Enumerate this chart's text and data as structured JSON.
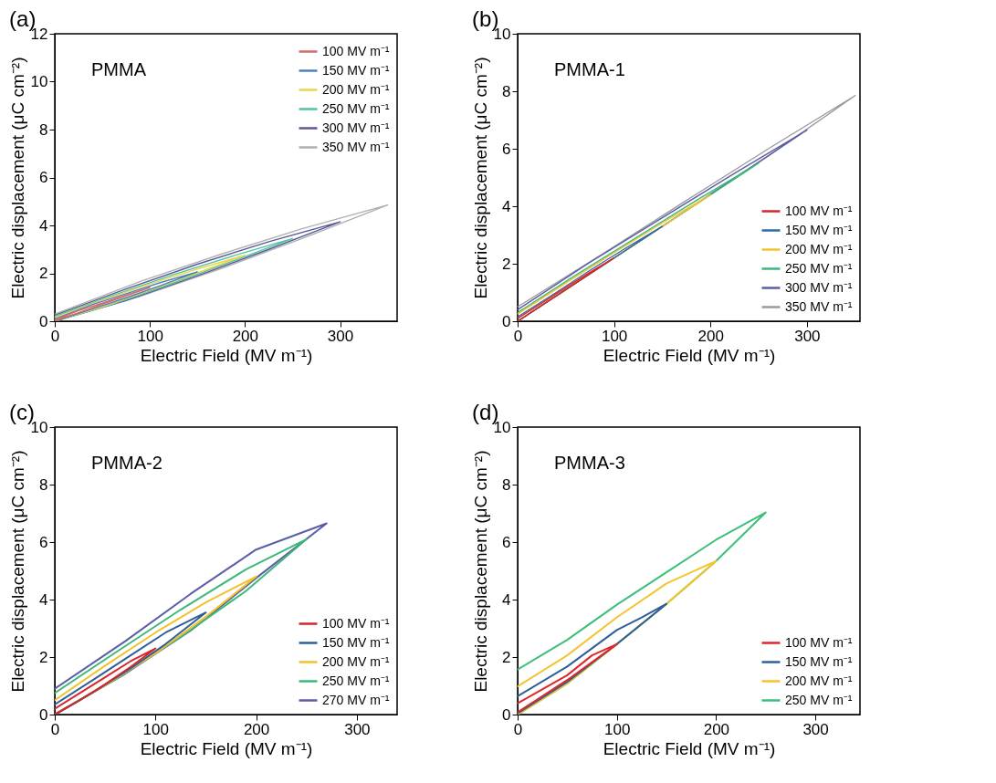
{
  "chart_data": [
    {
      "type": "line",
      "title": "(a)",
      "annotations": [
        "PMMA"
      ],
      "xlabel": "Electric Field (MV m⁻¹)",
      "ylabel": "Electric displacement (μC cm⁻²)",
      "xlim": [
        0,
        360
      ],
      "xticks": [
        0,
        100,
        200,
        300
      ],
      "ylim": [
        0,
        12
      ],
      "yticks": [
        0,
        2,
        4,
        6,
        8,
        10,
        12
      ],
      "grid": false,
      "legend": "top right",
      "marker": "none",
      "series": [
        {
          "name": "100 MV m⁻¹",
          "color": "#d46a6a",
          "x": [
            0,
            25,
            50,
            75,
            100,
            75,
            50,
            25,
            0
          ],
          "values": [
            0.02,
            0.36,
            0.71,
            1.06,
            1.41,
            1.09,
            0.76,
            0.44,
            0.05
          ]
        },
        {
          "name": "150 MV m⁻¹",
          "color": "#4f81bd",
          "x": [
            0,
            40,
            75,
            110,
            150,
            110,
            75,
            40,
            0
          ],
          "values": [
            0,
            0.52,
            0.98,
            1.47,
            2.06,
            1.6,
            1.15,
            0.7,
            0.1
          ]
        },
        {
          "name": "200 MV m⁻¹",
          "color": "#e8d44d",
          "x": [
            0,
            50,
            100,
            150,
            200,
            150,
            100,
            50,
            0
          ],
          "values": [
            0,
            0.6,
            1.3,
            2.02,
            2.76,
            2.18,
            1.56,
            0.88,
            0.15
          ]
        },
        {
          "name": "250 MV m⁻¹",
          "color": "#4fc4a0",
          "x": [
            0,
            60,
            125,
            190,
            250,
            190,
            125,
            60,
            0
          ],
          "values": [
            0,
            0.7,
            1.6,
            2.55,
            3.45,
            2.76,
            1.95,
            1.06,
            0.2
          ]
        },
        {
          "name": "300 MV m⁻¹",
          "color": "#5a5a9a",
          "x": [
            0,
            75,
            150,
            225,
            300,
            225,
            150,
            75,
            0
          ],
          "values": [
            0,
            0.86,
            1.9,
            3.0,
            4.15,
            3.32,
            2.38,
            1.35,
            0.25
          ]
        },
        {
          "name": "350 MV m⁻¹",
          "color": "#b0b0b0",
          "x": [
            0,
            90,
            175,
            260,
            350,
            260,
            175,
            90,
            0
          ],
          "values": [
            0,
            1.04,
            2.2,
            3.45,
            4.85,
            3.86,
            2.8,
            1.66,
            0.3
          ]
        }
      ]
    },
    {
      "type": "line",
      "title": "(b)",
      "annotations": [
        "PMMA-1"
      ],
      "xlabel": "Electric Field (MV m⁻¹)",
      "ylabel": "Electric displacement (μC cm⁻²)",
      "xlim": [
        0,
        355
      ],
      "xticks": [
        0,
        100,
        200,
        300
      ],
      "ylim": [
        0,
        10
      ],
      "yticks": [
        0,
        2,
        4,
        6,
        8,
        10
      ],
      "grid": false,
      "legend": "bottom right",
      "marker": "none",
      "series": [
        {
          "name": "100 MV m⁻¹",
          "color": "#d7262b",
          "x": [
            0,
            25,
            50,
            75,
            100,
            75,
            50,
            25,
            0
          ],
          "values": [
            0,
            0.55,
            1.1,
            1.65,
            2.2,
            1.7,
            1.17,
            0.63,
            0.1
          ]
        },
        {
          "name": "150 MV m⁻¹",
          "color": "#2e6aa8",
          "x": [
            0,
            40,
            75,
            110,
            150,
            110,
            75,
            40,
            0
          ],
          "values": [
            0,
            0.88,
            1.65,
            2.42,
            3.3,
            2.5,
            1.77,
            1.0,
            0.15
          ]
        },
        {
          "name": "200 MV m⁻¹",
          "color": "#f2c12e",
          "x": [
            0,
            50,
            100,
            150,
            200,
            150,
            100,
            50,
            0
          ],
          "values": [
            0,
            1.1,
            2.2,
            3.3,
            4.4,
            3.42,
            2.38,
            1.33,
            0.25
          ]
        },
        {
          "name": "250 MV m⁻¹",
          "color": "#3cb878",
          "x": [
            0,
            60,
            125,
            190,
            250,
            190,
            125,
            60,
            0
          ],
          "values": [
            0,
            1.32,
            2.75,
            4.18,
            5.5,
            4.3,
            2.95,
            1.6,
            0.3
          ]
        },
        {
          "name": "300 MV m⁻¹",
          "color": "#5b5ea6",
          "x": [
            0,
            75,
            150,
            225,
            300,
            225,
            150,
            75,
            0
          ],
          "values": [
            0,
            1.65,
            3.3,
            4.98,
            6.65,
            5.15,
            3.6,
            2.05,
            0.4
          ]
        },
        {
          "name": "350 MV m⁻¹",
          "color": "#9a9a9a",
          "x": [
            0,
            90,
            175,
            260,
            350,
            260,
            175,
            90,
            0
          ],
          "values": [
            0,
            1.98,
            3.85,
            5.75,
            7.85,
            6.0,
            4.2,
            2.38,
            0.5
          ]
        }
      ]
    },
    {
      "type": "line",
      "title": "(c)",
      "annotations": [
        "PMMA-2"
      ],
      "xlabel": "Electric Field (MV m⁻¹)",
      "ylabel": "Electric displacement (μC cm⁻²)",
      "xlim": [
        0,
        340
      ],
      "xticks": [
        0,
        100,
        200,
        300
      ],
      "ylim": [
        0,
        10
      ],
      "yticks": [
        0,
        2,
        4,
        6,
        8,
        10
      ],
      "grid": false,
      "legend": "bottom right",
      "marker": "none",
      "series": [
        {
          "name": "100 MV m⁻¹",
          "color": "#d7262b",
          "x": [
            0,
            25,
            50,
            75,
            100,
            75,
            50,
            25,
            0
          ],
          "values": [
            0,
            0.5,
            1.05,
            1.65,
            2.3,
            1.85,
            1.3,
            0.75,
            0.2
          ]
        },
        {
          "name": "150 MV m⁻¹",
          "color": "#2e5f9a",
          "x": [
            0,
            40,
            75,
            110,
            150,
            110,
            75,
            40,
            0
          ],
          "values": [
            0,
            0.82,
            1.6,
            2.45,
            3.55,
            2.85,
            2.05,
            1.25,
            0.35
          ]
        },
        {
          "name": "200 MV m⁻¹",
          "color": "#f2c12e",
          "x": [
            0,
            50,
            100,
            150,
            200,
            150,
            100,
            50,
            0
          ],
          "values": [
            0,
            1.02,
            2.13,
            3.4,
            4.8,
            3.9,
            2.85,
            1.7,
            0.5
          ]
        },
        {
          "name": "250 MV m⁻¹",
          "color": "#3cb878",
          "x": [
            0,
            60,
            125,
            190,
            250,
            190,
            125,
            60,
            0
          ],
          "values": [
            0,
            1.22,
            2.7,
            4.3,
            6.1,
            5.05,
            3.65,
            2.15,
            0.75
          ]
        },
        {
          "name": "270 MV m⁻¹",
          "color": "#5b5ea6",
          "x": [
            0,
            70,
            135,
            200,
            270,
            200,
            135,
            70,
            0
          ],
          "values": [
            0,
            1.42,
            2.92,
            4.75,
            6.65,
            5.74,
            4.2,
            2.55,
            0.9
          ]
        }
      ]
    },
    {
      "type": "line",
      "title": "(d)",
      "annotations": [
        "PMMA-3"
      ],
      "xlabel": "Electric Field (MV m⁻¹)",
      "ylabel": "Electric displacement (μC cm⁻²)",
      "xlim": [
        0,
        345
      ],
      "xticks": [
        0,
        100,
        200,
        300
      ],
      "ylim": [
        0,
        10
      ],
      "yticks": [
        0,
        2,
        4,
        6,
        8,
        10
      ],
      "grid": false,
      "legend": "bottom right",
      "marker": "none",
      "series": [
        {
          "name": "100 MV m⁻¹",
          "color": "#e0262b",
          "x": [
            0,
            50,
            100,
            75,
            50,
            0
          ],
          "values": [
            0.08,
            1.2,
            2.45,
            2.06,
            1.37,
            0.39
          ]
        },
        {
          "name": "150 MV m⁻¹",
          "color": "#2e5f9a",
          "x": [
            0,
            50,
            100,
            150,
            125,
            100,
            50,
            0
          ],
          "values": [
            0.04,
            1.14,
            2.45,
            3.85,
            3.38,
            2.94,
            1.67,
            0.64
          ]
        },
        {
          "name": "200 MV m⁻¹",
          "color": "#f5c32c",
          "x": [
            0,
            50,
            100,
            150,
            200,
            150,
            100,
            50,
            0
          ],
          "values": [
            0,
            1.08,
            2.45,
            3.85,
            5.34,
            4.56,
            3.38,
            2.06,
            0.98
          ]
        },
        {
          "name": "250 MV m⁻¹",
          "color": "#3cbf7a",
          "x": [
            0,
            50,
            100,
            150,
            200,
            250,
            200,
            150,
            100,
            50,
            0
          ],
          "values": [
            0,
            1.08,
            2.45,
            3.85,
            5.34,
            7.03,
            6.08,
            4.95,
            3.82,
            2.6,
            1.57
          ]
        }
      ]
    }
  ]
}
